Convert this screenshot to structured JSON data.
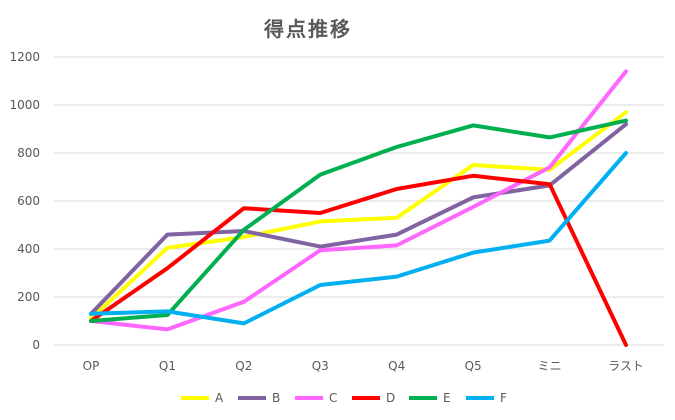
{
  "chart_data": {
    "type": "line",
    "title": "得点推移",
    "xlabel": "",
    "ylabel": "",
    "categories": [
      "OP",
      "Q1",
      "Q2",
      "Q3",
      "Q4",
      "Q5",
      "ミニ",
      "ラスト"
    ],
    "ylim": [
      0,
      1200
    ],
    "yticks": [
      0,
      200,
      400,
      600,
      800,
      1000,
      1200
    ],
    "grid": true,
    "legend_position": "bottom",
    "series": [
      {
        "name": "A",
        "color": "#FFFF00",
        "values": [
          110,
          405,
          450,
          515,
          530,
          750,
          730,
          970
        ]
      },
      {
        "name": "B",
        "color": "#8064A2",
        "values": [
          130,
          460,
          475,
          410,
          460,
          615,
          665,
          920
        ]
      },
      {
        "name": "C",
        "color": "#FF66FF",
        "values": [
          100,
          65,
          180,
          395,
          415,
          575,
          740,
          1140
        ]
      },
      {
        "name": "D",
        "color": "#FF0000",
        "values": [
          100,
          320,
          570,
          550,
          650,
          705,
          670,
          0
        ]
      },
      {
        "name": "E",
        "color": "#00B050",
        "values": [
          100,
          125,
          480,
          710,
          825,
          915,
          865,
          935
        ]
      },
      {
        "name": "F",
        "color": "#00B0F0",
        "values": [
          130,
          140,
          90,
          250,
          285,
          385,
          435,
          800
        ]
      }
    ]
  }
}
